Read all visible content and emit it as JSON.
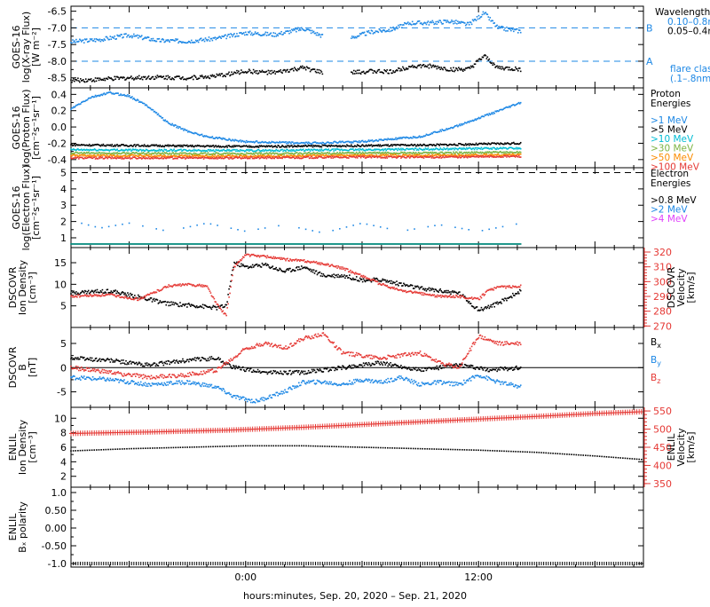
{
  "x_axis": {
    "label": "hours:minutes, Sep. 20, 2020 – Sep. 21, 2020",
    "range_hours": [
      -9,
      20.5
    ],
    "ticks": [
      {
        "h": 0,
        "label": "0:00"
      },
      {
        "h": 12,
        "label": "12:00"
      }
    ]
  },
  "colors": {
    "blue": "#1e88e5",
    "black": "#000000",
    "red": "#e53935",
    "cyan": "#00bcd4",
    "lime": "#7cb342",
    "orange": "#fb8c00",
    "magenta": "#e040fb"
  },
  "chart_data": [
    {
      "id": "xray",
      "type": "scatter",
      "ylabel": [
        "GOES-16",
        "log(X-ray Flux)",
        "[W m⁻²]"
      ],
      "ylim": [
        -8.8,
        -6.35
      ],
      "yticks": [
        -6.5,
        -7.0,
        -7.5,
        -8.0,
        -8.5
      ],
      "ytick_labels": [
        "-6.5",
        "-7.0",
        "-7.5",
        "-8.0",
        "-8.5"
      ],
      "ref_lines": [
        {
          "y": -7.0,
          "label": "B"
        },
        {
          "y": -8.0,
          "label": "A"
        }
      ],
      "legend": {
        "title": "Wavelength",
        "entries": [
          {
            "text": "0.10–0.8nm",
            "color": "#1e88e5"
          },
          {
            "text": "0.05–0.4nm",
            "color": "#000000"
          }
        ],
        "extra": [
          "flare class",
          "(.1–.8nm)"
        ]
      },
      "gaps": [
        [
          4.0,
          5.4
        ]
      ],
      "series": [
        {
          "color": "#1e88e5",
          "x": [
            -9,
            -7.5,
            -6,
            -4.5,
            -3,
            -1.5,
            0,
            1.5,
            3,
            4,
            5.4,
            6.5,
            7.5,
            8.5,
            9.5,
            10.5,
            11.5,
            12.3,
            13,
            14.2
          ],
          "y": [
            -7.42,
            -7.35,
            -7.22,
            -7.38,
            -7.4,
            -7.32,
            -7.15,
            -7.2,
            -7.02,
            -7.25,
            -7.3,
            -7.12,
            -7.05,
            -6.85,
            -6.85,
            -6.8,
            -6.9,
            -6.55,
            -7.0,
            -7.1
          ]
        },
        {
          "color": "#000000",
          "x": [
            -9,
            -7.5,
            -6,
            -4.5,
            -3,
            -1.5,
            0,
            1.5,
            3,
            4,
            5.4,
            6.5,
            7.5,
            8.5,
            9.5,
            10.5,
            11.5,
            12.3,
            13,
            14.2
          ],
          "y": [
            -8.58,
            -8.55,
            -8.5,
            -8.48,
            -8.5,
            -8.45,
            -8.3,
            -8.35,
            -8.2,
            -8.35,
            -8.35,
            -8.3,
            -8.32,
            -8.15,
            -8.15,
            -8.25,
            -8.25,
            -7.85,
            -8.2,
            -8.25
          ]
        }
      ]
    },
    {
      "id": "proton",
      "type": "scatter",
      "ylabel": [
        "GOES-16",
        "log(Proton Flux)",
        "[cm⁻²s⁻¹sr⁻¹]"
      ],
      "ylim": [
        -0.5,
        0.48
      ],
      "yticks": [
        0.4,
        0.2,
        0.0,
        -0.2,
        -0.4
      ],
      "ytick_labels": [
        "0.4",
        "0.2",
        "0.0",
        "-0.2",
        "-0.4"
      ],
      "legend": {
        "title": "Proton Energies",
        "entries": [
          {
            "text": ">1 MeV",
            "color": "#1e88e5"
          },
          {
            "text": ">5 MeV",
            "color": "#000000"
          },
          {
            "text": ">10 MeV",
            "color": "#00bcd4"
          },
          {
            "text": ">30 MeV",
            "color": "#7cb342"
          },
          {
            "text": ">50 MeV",
            "color": "#fb8c00"
          },
          {
            "text": ">100 MeV",
            "color": "#e53935"
          }
        ]
      },
      "series": [
        {
          "color": "#1e88e5",
          "x": [
            -9,
            -8,
            -7,
            -6,
            -5,
            -4,
            -3,
            -2,
            0,
            3,
            6,
            9,
            11,
            12.5,
            14.2
          ],
          "y": [
            0.22,
            0.36,
            0.42,
            0.38,
            0.25,
            0.05,
            -0.05,
            -0.12,
            -0.18,
            -0.2,
            -0.18,
            -0.12,
            0.02,
            0.15,
            0.3
          ]
        },
        {
          "color": "#000000",
          "x": [
            -9,
            0,
            6,
            10,
            14.2
          ],
          "y": [
            -0.22,
            -0.24,
            -0.23,
            -0.22,
            -0.2
          ]
        },
        {
          "color": "#00bcd4",
          "x": [
            -9,
            0,
            6,
            10,
            14.2
          ],
          "y": [
            -0.28,
            -0.29,
            -0.28,
            -0.27,
            -0.26
          ]
        },
        {
          "color": "#7cb342",
          "x": [
            -9,
            0,
            6,
            10,
            14.2
          ],
          "y": [
            -0.32,
            -0.33,
            -0.32,
            -0.32,
            -0.31
          ]
        },
        {
          "color": "#fb8c00",
          "x": [
            -9,
            0,
            6,
            10,
            14.2
          ],
          "y": [
            -0.35,
            -0.36,
            -0.35,
            -0.35,
            -0.34
          ]
        },
        {
          "color": "#e53935",
          "x": [
            -9,
            0,
            6,
            10,
            14.2
          ],
          "y": [
            -0.38,
            -0.38,
            -0.37,
            -0.37,
            -0.36
          ]
        }
      ]
    },
    {
      "id": "electron",
      "type": "scatter",
      "ylabel": [
        "GOES-16",
        "log(Electron Flux)",
        "[cm⁻²s⁻¹sr⁻¹]"
      ],
      "ylim": [
        0.4,
        5.3
      ],
      "yticks": [
        1,
        2,
        3,
        4,
        5
      ],
      "ytick_labels": [
        "1",
        "2",
        "3",
        "4",
        "5"
      ],
      "ref_lines": [
        {
          "y": 5.0,
          "label": ""
        }
      ],
      "legend": {
        "title": "Electron Energies",
        "entries": [
          {
            "text": ">0.8 MeV",
            "color": "#000000"
          },
          {
            "text": ">2 MeV",
            "color": "#1e88e5"
          },
          {
            "text": ">4 MeV",
            "color": "#e040fb"
          }
        ]
      },
      "series": [
        {
          "color": "#1e88e5",
          "x": [
            -8.8,
            -7.5,
            -6,
            -4,
            -2,
            0,
            2,
            4,
            6,
            8,
            10,
            12,
            14.2
          ],
          "y": [
            2.0,
            1.6,
            1.9,
            1.4,
            1.9,
            1.4,
            1.8,
            1.3,
            1.9,
            1.4,
            1.8,
            1.4,
            1.9
          ]
        },
        {
          "color": "#00897b",
          "x": [
            -9,
            14.2
          ],
          "y": [
            0.62,
            0.62
          ]
        }
      ]
    },
    {
      "id": "dscovr-density",
      "type": "line",
      "ylabel": [
        "DSCOVR",
        "Ion Density",
        "[cm⁻³]"
      ],
      "ylim": [
        0,
        18.5
      ],
      "yticks": [
        15,
        10,
        5
      ],
      "ytick_labels": [
        "15",
        "10",
        "5"
      ],
      "right_axis": {
        "label": [
          "DSCOVR",
          "Velocity",
          "[km/s]"
        ],
        "color": "#e53935",
        "ylim": [
          269,
          323
        ],
        "yticks": [
          320,
          310,
          300,
          290,
          280,
          270
        ],
        "ytick_labels": [
          "320",
          "310",
          "300",
          "290",
          "280",
          "270"
        ]
      },
      "series": [
        {
          "name": "density",
          "color": "#000000",
          "axis": "left",
          "x": [
            -9,
            -7,
            -5.5,
            -4,
            -2.5,
            -1.5,
            -1,
            -0.6,
            0,
            1,
            2,
            3,
            4,
            5,
            6,
            7,
            8,
            9,
            10,
            11,
            12,
            13,
            14.2
          ],
          "y": [
            8,
            8.5,
            7,
            5.5,
            5,
            4.5,
            5,
            15,
            14,
            14.5,
            13,
            14,
            12,
            12,
            11,
            11,
            10,
            9,
            8.5,
            8,
            4,
            5.5,
            8.5
          ]
        },
        {
          "name": "velocity",
          "color": "#e53935",
          "axis": "right",
          "x": [
            -9,
            -7,
            -5.5,
            -4,
            -3,
            -2,
            -1.5,
            -1,
            -0.6,
            0,
            1,
            2,
            3,
            4,
            5,
            6,
            7,
            8,
            9,
            10,
            11,
            12,
            12.5,
            13,
            14.2
          ],
          "y": [
            290,
            291,
            288,
            297,
            298,
            297,
            285,
            277,
            310,
            318,
            317,
            315,
            314,
            312,
            309,
            304,
            298,
            294,
            292,
            290,
            290,
            288,
            294,
            296,
            297
          ]
        }
      ]
    },
    {
      "id": "dscovr-b",
      "type": "line",
      "ylabel": [
        "DSCOVR",
        "B",
        "[nT]"
      ],
      "ylim": [
        -8.2,
        8.3
      ],
      "yticks": [
        5,
        0,
        -5
      ],
      "ytick_labels": [
        "5",
        "0",
        "-5"
      ],
      "ref_lines": [
        {
          "y": 0,
          "label": ""
        }
      ],
      "legend": {
        "entries": [
          {
            "text": "B",
            "sub": "x",
            "color": "#000000"
          },
          {
            "text": "B",
            "sub": "y",
            "color": "#1e88e5"
          },
          {
            "text": "B",
            "sub": "z",
            "color": "#e53935"
          }
        ]
      },
      "series": [
        {
          "name": "Bx",
          "color": "#000000",
          "x": [
            -9,
            -7,
            -5,
            -3,
            -1.5,
            -0.6,
            1,
            3,
            5,
            7,
            9,
            11,
            12.5,
            14.2
          ],
          "y": [
            2,
            1.5,
            0.5,
            1.5,
            2,
            0,
            -1,
            -1,
            0,
            1,
            -0.5,
            0.5,
            -0.5,
            0
          ]
        },
        {
          "name": "By",
          "color": "#1e88e5",
          "x": [
            -9,
            -7,
            -5,
            -3,
            -1.5,
            -0.6,
            0.5,
            2,
            3,
            4,
            5,
            6,
            7,
            8,
            9,
            10,
            11,
            12,
            13,
            14.2
          ],
          "y": [
            -2,
            -2.5,
            -3.5,
            -3,
            -4,
            -6,
            -7,
            -5,
            -3,
            -3,
            -3.5,
            -2.5,
            -3,
            -2,
            -3.5,
            -3,
            -3.5,
            -1.5,
            -3,
            -4
          ]
        },
        {
          "name": "Bz",
          "color": "#e53935",
          "x": [
            -9,
            -7,
            -5,
            -3,
            -1.5,
            -0.6,
            0,
            1,
            2,
            3,
            4,
            5,
            6,
            7,
            8,
            9,
            10,
            11,
            12,
            13,
            14.2
          ],
          "y": [
            0,
            -1,
            -2,
            -1.5,
            -0.5,
            2,
            4,
            5,
            4,
            6,
            7,
            3,
            2.5,
            2,
            2.5,
            3,
            1,
            0,
            6.5,
            5,
            5
          ]
        }
      ]
    },
    {
      "id": "enlil-density",
      "type": "line",
      "ylabel": [
        "ENLIL",
        "Ion Density",
        "[cm⁻³]"
      ],
      "ylim": [
        0.5,
        11.5
      ],
      "yticks": [
        10,
        8,
        6,
        4,
        2
      ],
      "ytick_labels": [
        "10",
        "8",
        "6",
        "4",
        "2"
      ],
      "right_axis": {
        "label": [
          "ENLIL",
          "Velocity",
          "[km/s]"
        ],
        "color": "#e53935",
        "ylim": [
          340,
          560
        ],
        "yticks": [
          550,
          500,
          450,
          400,
          350
        ],
        "ytick_labels": [
          "550",
          "500",
          "450",
          "400",
          "350"
        ]
      },
      "series": [
        {
          "name": "density",
          "color": "#000000",
          "axis": "left",
          "x": [
            -9,
            -6,
            -3,
            0,
            3,
            6,
            9,
            12,
            15,
            18,
            20.5
          ],
          "y": [
            5.5,
            5.8,
            6.0,
            6.2,
            6.2,
            6.0,
            5.8,
            5.6,
            5.3,
            4.8,
            4.3
          ]
        },
        {
          "name": "velocity",
          "color": "#e53935",
          "axis": "right",
          "x": [
            -9,
            -5,
            -1,
            3,
            7,
            11,
            15,
            18,
            20.5
          ],
          "y": [
            488,
            492,
            497,
            505,
            515,
            525,
            535,
            543,
            548
          ]
        }
      ]
    },
    {
      "id": "enlil-bx",
      "type": "line",
      "ylabel": [
        "ENLIL",
        "Bₓ polarity"
      ],
      "ylim": [
        -1.1,
        1.15
      ],
      "yticks": [
        1.0,
        0.5,
        0.0,
        -0.5,
        -1.0
      ],
      "ytick_labels": [
        "1.0",
        "0.50",
        "0.00",
        "-0.50",
        "-1.0"
      ],
      "series": [
        {
          "name": "polarity",
          "color": "#000000",
          "x": [
            -9,
            20.5
          ],
          "y": [
            -1.0,
            -1.0
          ]
        }
      ]
    }
  ]
}
